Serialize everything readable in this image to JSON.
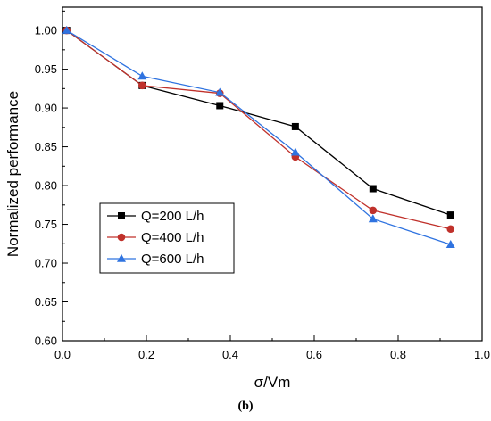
{
  "chart_data": {
    "type": "line",
    "xlabel": "σ/Vm",
    "ylabel": "Normalized performance",
    "xlim": [
      0.0,
      1.0
    ],
    "ylim": [
      0.6,
      1.03
    ],
    "xticks": [
      "0.0",
      "0.2",
      "0.4",
      "0.6",
      "0.8",
      "1.0"
    ],
    "yticks": [
      "0.60",
      "0.65",
      "0.70",
      "0.75",
      "0.80",
      "0.85",
      "0.90",
      "0.95",
      "1.00"
    ],
    "grid": false,
    "legend_position": "lower-left",
    "series": [
      {
        "name": "Q=200 L/h",
        "color": "#000000",
        "marker": "square",
        "x": [
          0.01,
          0.19,
          0.375,
          0.555,
          0.74,
          0.925
        ],
        "y": [
          1.0,
          0.929,
          0.903,
          0.876,
          0.796,
          0.762
        ]
      },
      {
        "name": "Q=400 L/h",
        "color": "#c0312b",
        "marker": "circle",
        "x": [
          0.01,
          0.19,
          0.375,
          0.555,
          0.74,
          0.925
        ],
        "y": [
          1.0,
          0.929,
          0.919,
          0.837,
          0.768,
          0.744
        ]
      },
      {
        "name": "Q=600 L/h",
        "color": "#2f73e0",
        "marker": "triangle",
        "x": [
          0.01,
          0.19,
          0.375,
          0.555,
          0.74,
          0.925
        ],
        "y": [
          1.0,
          0.941,
          0.92,
          0.843,
          0.757,
          0.724
        ]
      }
    ]
  },
  "caption": "(b)"
}
